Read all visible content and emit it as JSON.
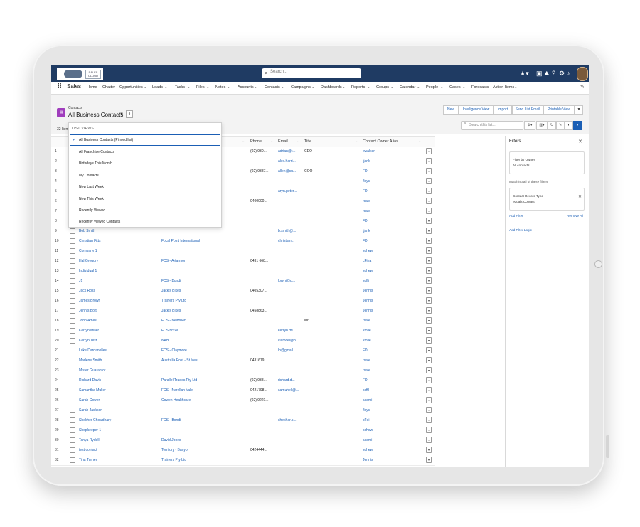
{
  "global": {
    "search_placeholder": "Search...",
    "logo_text": "SALES CLOUD"
  },
  "nav": {
    "app_name": "Sales",
    "items": [
      "Home",
      "Chatter",
      "Opportunities",
      "Leads",
      "Tasks",
      "Files",
      "Notes",
      "Accounts",
      "Contacts",
      "Campaigns",
      "Dashboards",
      "Reports",
      "Groups",
      "Calendar",
      "People",
      "Cases",
      "Forecasts",
      "Action Items"
    ]
  },
  "header": {
    "object_label": "Contacts",
    "list_title": "All Business Contacts",
    "record_count": "32 Items",
    "search_placeholder": "Search this list...",
    "buttons": [
      "New",
      "Intelligence View",
      "Import",
      "Send List Email",
      "Printable View"
    ]
  },
  "dropdown": {
    "header": "LIST VIEWS",
    "items": [
      "All Business Contacts (Pinned list)",
      "All Franchise Contacts",
      "Birthdays This Month",
      "My Contacts",
      "New Last Week",
      "New This Week",
      "Recently Viewed",
      "Recently Viewed Contacts"
    ]
  },
  "table": {
    "headers": [
      "Phone",
      "Email",
      "Title",
      "Contact Owner Alias"
    ],
    "rows": [
      {
        "n": "1",
        "name": "",
        "account": "",
        "phone": "(02) 930...",
        "email": "adrian@t...",
        "title": "CEO",
        "owner": "kwalker"
      },
      {
        "n": "2",
        "name": "",
        "account": "",
        "phone": "",
        "email": "alex.harri...",
        "title": "",
        "owner": "tjank"
      },
      {
        "n": "3",
        "name": "",
        "account": "",
        "phone": "(02) 9387...",
        "email": "allen@su...",
        "title": "COO",
        "owner": "FD"
      },
      {
        "n": "4",
        "name": "",
        "account": "",
        "phone": "",
        "email": "",
        "title": "",
        "owner": "flsys"
      },
      {
        "n": "5",
        "name": "",
        "account": "",
        "phone": "",
        "email": "aryn.peter...",
        "title": "",
        "owner": "FD"
      },
      {
        "n": "6",
        "name": "",
        "account": "",
        "phone": "0400000...",
        "email": "",
        "title": "",
        "owner": "rsale"
      },
      {
        "n": "7",
        "name": "",
        "account": "",
        "phone": "",
        "email": "",
        "title": "",
        "owner": "rsale"
      },
      {
        "n": "8",
        "name": "",
        "account": "",
        "phone": "",
        "email": "",
        "title": "",
        "owner": "FD"
      },
      {
        "n": "9",
        "name": "Bob Smith",
        "account": "",
        "phone": "",
        "email": "b.smith@...",
        "title": "",
        "owner": "tjank"
      },
      {
        "n": "10",
        "name": "Christian Fitts",
        "account": "Focal Point International",
        "phone": "",
        "email": "christian...",
        "title": "",
        "owner": "FD"
      },
      {
        "n": "11",
        "name": "Company 1",
        "account": "",
        "phone": "",
        "email": "",
        "title": "",
        "owner": "schew"
      },
      {
        "n": "12",
        "name": "Hal Gregory",
        "account": "FCS - Artarmon",
        "phone": "0431 668...",
        "email": "",
        "title": "",
        "owner": "cFina"
      },
      {
        "n": "13",
        "name": "Individual 1",
        "account": "",
        "phone": "",
        "email": "",
        "title": "",
        "owner": "schew"
      },
      {
        "n": "14",
        "name": "J1",
        "account": "FCS - Bondi",
        "phone": "",
        "email": "lorynj@g...",
        "title": "",
        "owner": "scffi"
      },
      {
        "n": "15",
        "name": "Jack Ross",
        "account": "Jack's Bikes",
        "phone": "0405307...",
        "email": "",
        "title": "",
        "owner": "Jennis"
      },
      {
        "n": "16",
        "name": "James Brown",
        "account": "Trainers Pty Ltd",
        "phone": "",
        "email": "",
        "title": "",
        "owner": "Jennis"
      },
      {
        "n": "17",
        "name": "Jennis Bott",
        "account": "Jack's Bikes",
        "phone": "0458863...",
        "email": "",
        "title": "",
        "owner": "Jennis"
      },
      {
        "n": "18",
        "name": "John Ames",
        "account": "FCS - Newtown",
        "phone": "",
        "email": "",
        "title": "Mr.",
        "owner": "rsale"
      },
      {
        "n": "19",
        "name": "Kerryn Miller",
        "account": "FCS NSW",
        "phone": "",
        "email": "kerryn.mi...",
        "title": "",
        "owner": "kmile"
      },
      {
        "n": "20",
        "name": "Kerryn Test",
        "account": "NAB",
        "phone": "",
        "email": "clamcel@h...",
        "title": "",
        "owner": "kmile"
      },
      {
        "n": "21",
        "name": "Luke Dardanelles",
        "account": "FCS - Claymore",
        "phone": "",
        "email": "lb@gmail...",
        "title": "",
        "owner": "FD"
      },
      {
        "n": "22",
        "name": "Marlene Smith",
        "account": "Australia Post - St Ives",
        "phone": "0431619...",
        "email": "",
        "title": "",
        "owner": "rsale"
      },
      {
        "n": "23",
        "name": "Mister Guarantor",
        "account": "",
        "phone": "",
        "email": "",
        "title": "",
        "owner": "rsale"
      },
      {
        "n": "24",
        "name": "Richard Davis",
        "account": "Parallel Trades Pty Ltd",
        "phone": "(02) 938...",
        "email": "richard.d...",
        "title": "",
        "owner": "FD"
      },
      {
        "n": "25",
        "name": "Samantha Muller",
        "account": "FCS - Narellan Vale",
        "phone": "0421798...",
        "email": "samuhell@...",
        "title": "",
        "owner": "scffl"
      },
      {
        "n": "26",
        "name": "Sarah Cowen",
        "account": "Cowen Healthcare",
        "phone": "(02) 9221...",
        "email": "",
        "title": "",
        "owner": "sadmi"
      },
      {
        "n": "27",
        "name": "Sarah Jackson",
        "account": "",
        "phone": "",
        "email": "",
        "title": "",
        "owner": "flsys"
      },
      {
        "n": "28",
        "name": "Shekher Chowdhary",
        "account": "FCS - Bondi",
        "phone": "",
        "email": "shekhar.c...",
        "title": "",
        "owner": "cFei"
      },
      {
        "n": "29",
        "name": "Shopkeeper 1",
        "account": "",
        "phone": "",
        "email": "",
        "title": "",
        "owner": "schew"
      },
      {
        "n": "30",
        "name": "Tanya Rydell",
        "account": "David Jones",
        "phone": "",
        "email": "",
        "title": "",
        "owner": "sadmi"
      },
      {
        "n": "31",
        "name": "test contact",
        "account": "Territory - Banyo",
        "phone": "0424444...",
        "email": "",
        "title": "",
        "owner": "schew"
      },
      {
        "n": "32",
        "name": "Tina Turner",
        "account": "Trainers Pty Ltd",
        "phone": "",
        "email": "",
        "title": "",
        "owner": "Jennis"
      }
    ]
  },
  "filters": {
    "title": "Filters",
    "owner_label": "Filter by Owner",
    "owner_value": "All contacts",
    "matching": "Matching all of these filters",
    "rule_field": "Contact Record Type",
    "rule_value": "equals Contact",
    "add_filter": "Add Filter",
    "remove_all": "Remove All",
    "add_logic": "Add Filter Logic"
  }
}
